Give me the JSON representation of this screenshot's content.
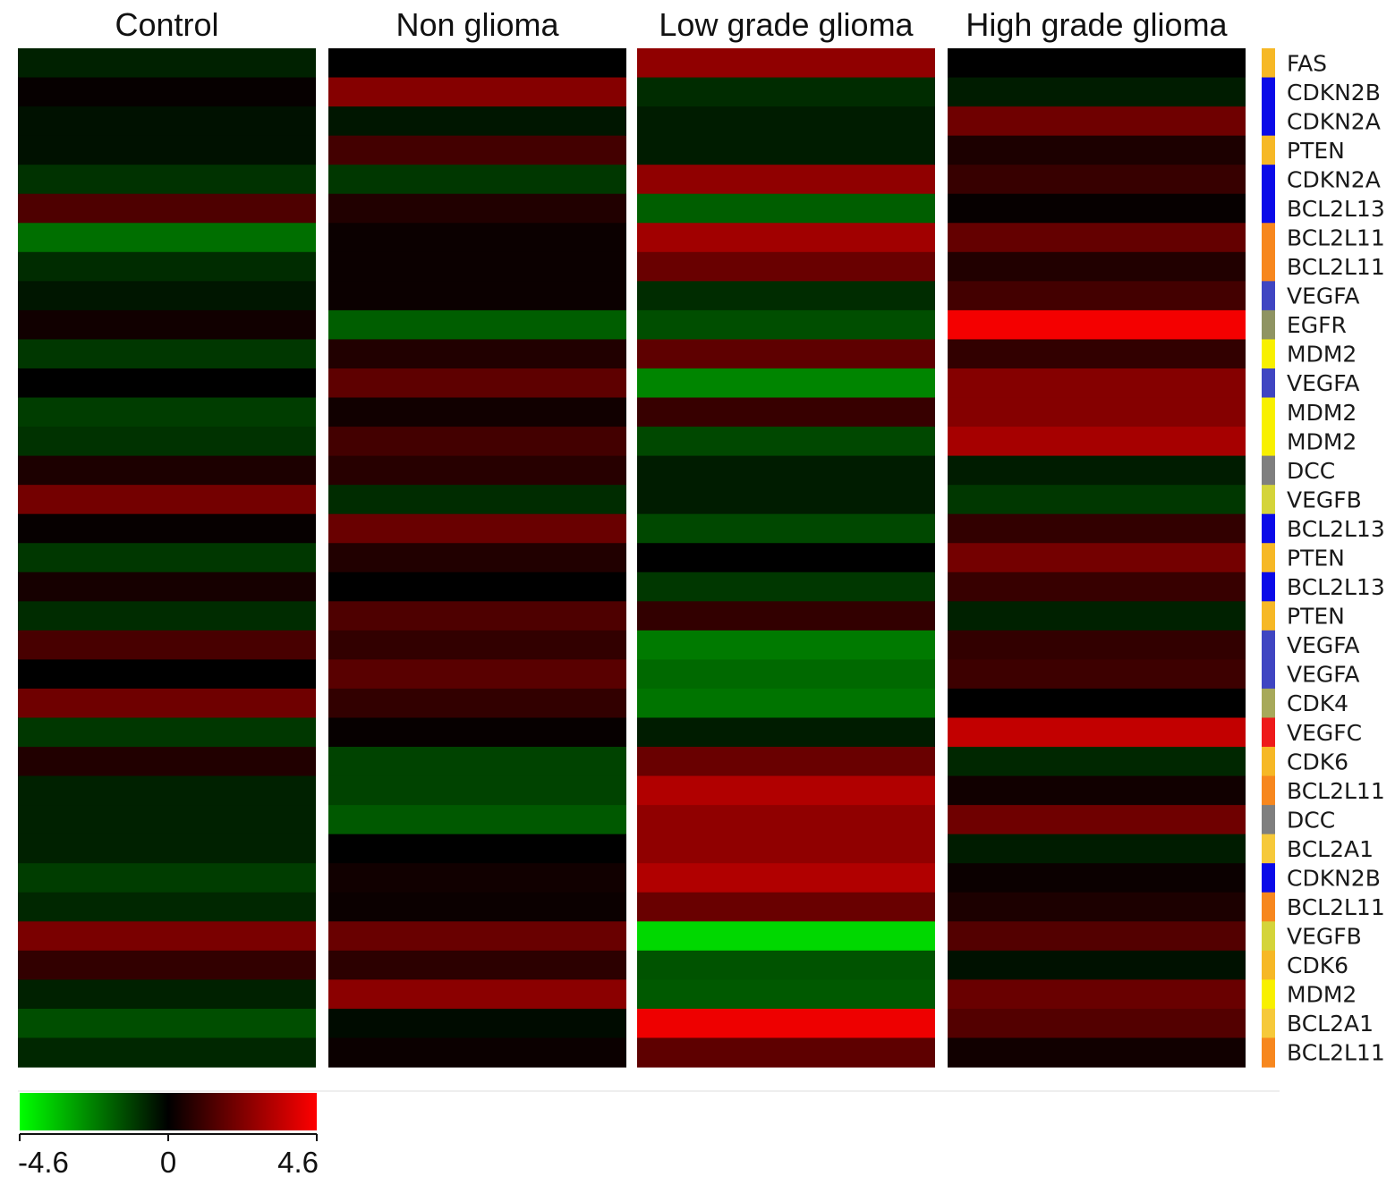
{
  "chart_data": {
    "type": "heatmap",
    "columns": [
      "Control",
      "Non glioma",
      "Low grade glioma",
      "High grade glioma"
    ],
    "rows": [
      "FAS",
      "CDKN2B",
      "CDKN2A",
      "PTEN",
      "CDKN2A",
      "BCL2L13",
      "BCL2L11",
      "BCL2L11",
      "VEGFA",
      "EGFR",
      "MDM2",
      "VEGFA",
      "MDM2",
      "MDM2",
      "DCC",
      "VEGFB",
      "BCL2L13",
      "PTEN",
      "BCL2L13",
      "PTEN",
      "VEGFA",
      "VEGFA",
      "CDK4",
      "VEGFC",
      "CDK6",
      "BCL2L11",
      "DCC",
      "BCL2A1",
      "CDKN2B",
      "BCL2L11",
      "VEGFB",
      "CDK6",
      "MDM2",
      "BCL2A1",
      "BCL2L11"
    ],
    "row_colors": [
      "#f6b826",
      "#0a0ae8",
      "#0a0ae8",
      "#f6b826",
      "#0a0ae8",
      "#0a0ae8",
      "#f7871e",
      "#f7871e",
      "#3f45c2",
      "#8f9462",
      "#f8f000",
      "#3f45c2",
      "#f8f000",
      "#f8f000",
      "#7f7f7f",
      "#d4d43a",
      "#0a0ae8",
      "#f6b826",
      "#0a0ae8",
      "#f6b826",
      "#3f45c2",
      "#3f45c2",
      "#a7a95a",
      "#ee1a1a",
      "#f6b826",
      "#f7871e",
      "#7f7f7f",
      "#f6c93a",
      "#0a0ae8",
      "#f7871e",
      "#d4d43a",
      "#f6b826",
      "#f8f000",
      "#f6c93a",
      "#f7871e"
    ],
    "values": [
      [
        -0.6,
        0.0,
        2.6,
        0.0
      ],
      [
        0.1,
        2.4,
        -0.8,
        -0.5
      ],
      [
        -0.3,
        -0.4,
        -0.5,
        2.0
      ],
      [
        -0.3,
        1.2,
        -0.5,
        0.5
      ],
      [
        -0.9,
        -1.0,
        2.6,
        1.0
      ],
      [
        1.4,
        0.6,
        -1.7,
        0.1
      ],
      [
        -2.0,
        0.2,
        2.9,
        1.8
      ],
      [
        -0.8,
        0.2,
        1.9,
        0.6
      ],
      [
        -0.4,
        0.2,
        -0.8,
        1.2
      ],
      [
        0.3,
        -1.7,
        -1.4,
        4.4
      ],
      [
        -1.0,
        0.6,
        1.7,
        0.9
      ],
      [
        0.0,
        1.7,
        -2.4,
        2.4
      ],
      [
        -1.1,
        0.3,
        1.0,
        2.4
      ],
      [
        -0.9,
        1.2,
        -1.3,
        3.0
      ],
      [
        0.5,
        0.7,
        -0.5,
        -0.5
      ],
      [
        2.1,
        -0.8,
        -0.5,
        -1.0
      ],
      [
        0.1,
        1.9,
        -1.3,
        0.9
      ],
      [
        -1.0,
        0.6,
        0.0,
        2.1
      ],
      [
        0.4,
        0.0,
        -1.0,
        1.0
      ],
      [
        -0.8,
        1.4,
        0.9,
        -0.6
      ],
      [
        1.3,
        0.9,
        -2.2,
        0.9
      ],
      [
        0.0,
        1.6,
        -1.9,
        1.1
      ],
      [
        2.0,
        0.9,
        -2.1,
        0.0
      ],
      [
        -1.0,
        0.1,
        -0.5,
        3.5
      ],
      [
        0.6,
        -1.2,
        1.9,
        -0.7
      ],
      [
        -0.6,
        -1.2,
        3.2,
        0.3
      ],
      [
        -0.6,
        -1.6,
        2.6,
        2.0
      ],
      [
        -0.6,
        0.0,
        2.6,
        -0.5
      ],
      [
        -1.1,
        0.3,
        3.2,
        0.2
      ],
      [
        -0.7,
        0.2,
        1.9,
        0.5
      ],
      [
        2.2,
        1.9,
        -3.9,
        1.5
      ],
      [
        0.9,
        0.8,
        -1.5,
        -0.3
      ],
      [
        -0.6,
        2.5,
        -1.6,
        1.9
      ],
      [
        -1.4,
        -0.2,
        4.3,
        1.5
      ],
      [
        -0.7,
        0.2,
        1.7,
        0.3
      ]
    ],
    "color_scale": {
      "min": -4.6,
      "max": 4.6,
      "low_color": "#00ff00",
      "mid_color": "#000000",
      "high_color": "#ff0000",
      "ticks": [
        "-4.6",
        "0",
        "4.6"
      ]
    }
  }
}
